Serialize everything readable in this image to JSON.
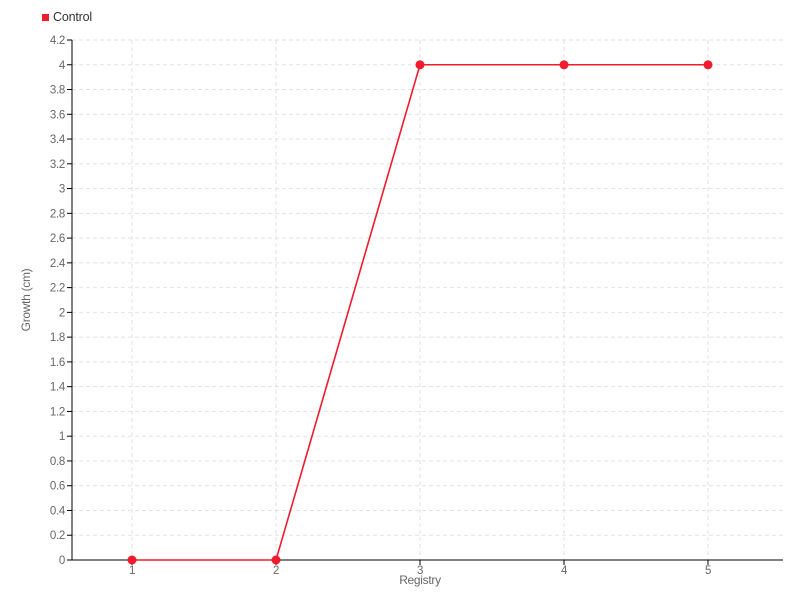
{
  "chart_data": {
    "type": "line",
    "title": "",
    "xlabel": "Registry",
    "ylabel": "Growth (cm)",
    "legend_position": "top-left",
    "grid": true,
    "categories": [
      "1",
      "2",
      "3",
      "4",
      "5"
    ],
    "series": [
      {
        "name": "Control",
        "color": "#ee1c2d",
        "marker": "circle",
        "values": [
          0,
          0,
          4,
          4,
          4
        ]
      }
    ],
    "ylim": [
      0,
      4.2
    ],
    "ytick_step": 0.2,
    "yticks": [
      "0",
      "0.2",
      "0.4",
      "0.6",
      "0.8",
      "1",
      "1.2",
      "1.4",
      "1.6",
      "1.8",
      "2",
      "2.2",
      "2.4",
      "2.6",
      "2.8",
      "3",
      "3.2",
      "3.4",
      "3.6",
      "3.8",
      "4",
      "4.2"
    ],
    "colors": {
      "axis": "#000000",
      "grid": "#e2e2e2",
      "tick_label": "#666666",
      "legend_text": "#333333",
      "background": "#ffffff"
    }
  }
}
